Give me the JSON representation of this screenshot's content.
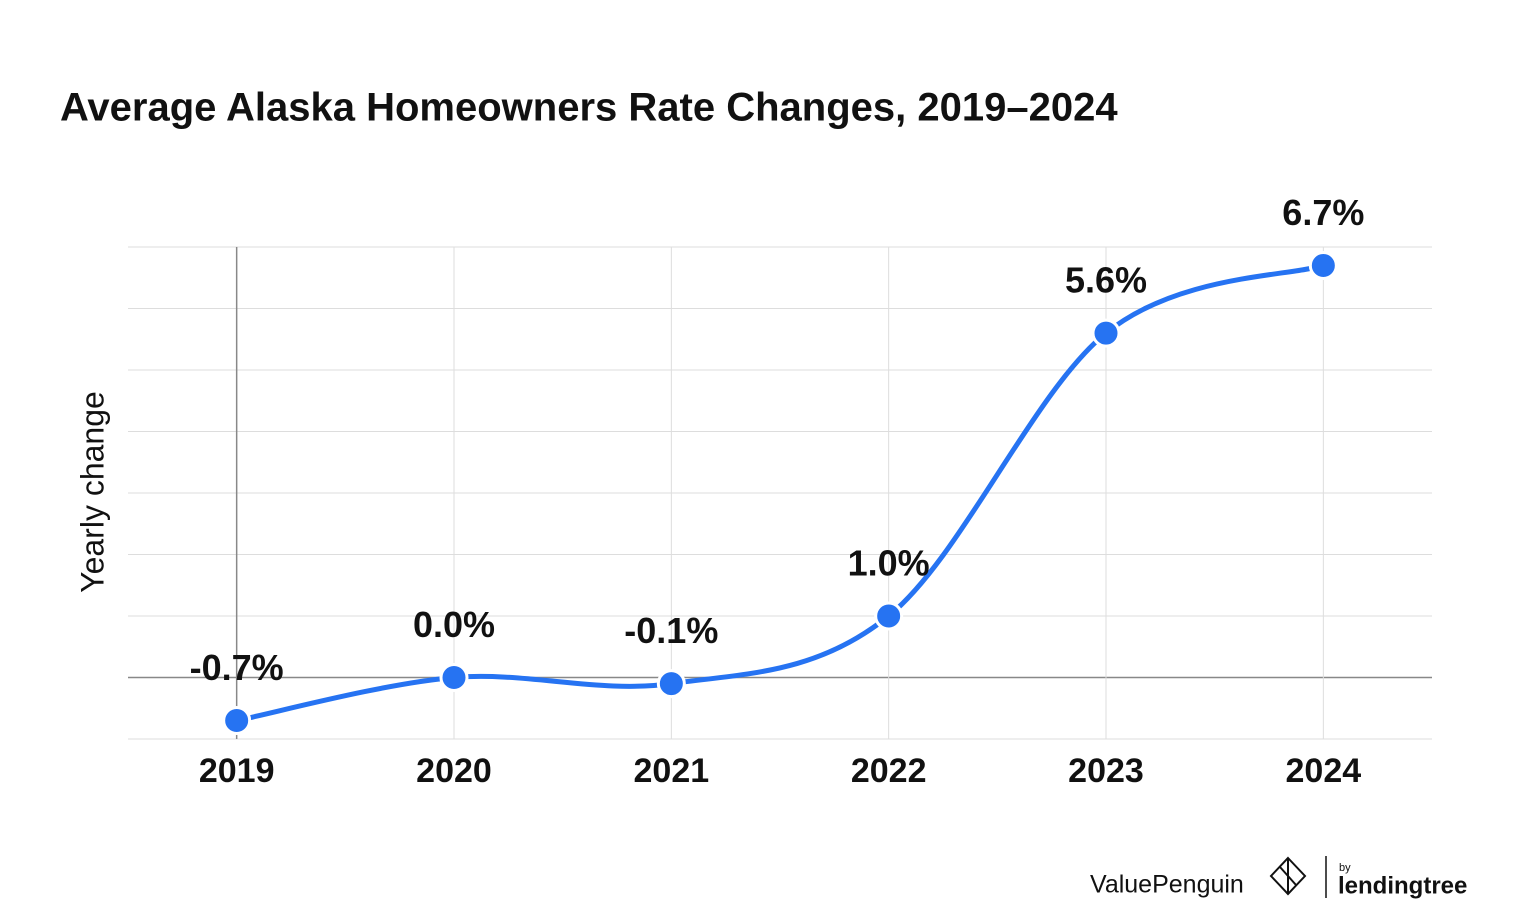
{
  "chart_data": {
    "type": "line",
    "title": "Average Alaska Homeowners Rate Changes, 2019–2024",
    "y_label": "Yearly change",
    "categories": [
      "2019",
      "2020",
      "2021",
      "2022",
      "2023",
      "2024"
    ],
    "values": [
      -0.7,
      0.0,
      -0.1,
      1.0,
      5.6,
      6.7
    ],
    "value_labels": [
      "-0.7%",
      "0.0%",
      "-0.1%",
      "1.0%",
      "5.6%",
      "6.7%"
    ],
    "color": "#2673f2",
    "ylim": [
      -1,
      7
    ],
    "yticks": [
      -1,
      0,
      1,
      2,
      3,
      4,
      5,
      6,
      7
    ],
    "grid": true
  },
  "footer": {
    "brand": "ValuePenguin",
    "by": "by",
    "partner": "lendingtree"
  }
}
